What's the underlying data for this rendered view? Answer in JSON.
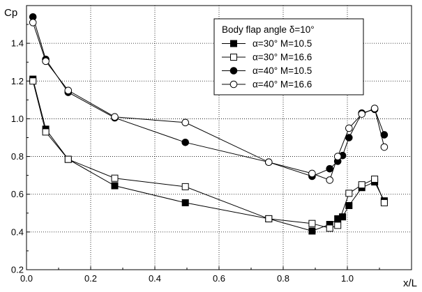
{
  "chart_data": {
    "type": "line",
    "xlabel": "x/L",
    "ylabel": "Cp",
    "xlim": [
      0.0,
      1.2
    ],
    "ylim": [
      0.2,
      1.6
    ],
    "xticks": [
      0.0,
      0.2,
      0.4,
      0.6,
      0.8,
      1.0
    ],
    "xtick_labels": [
      "0.0",
      "0.2",
      "0.4",
      "0.6",
      "0.8",
      "1.0"
    ],
    "yticks": [
      0.2,
      0.4,
      0.6,
      0.8,
      1.0,
      1.2,
      1.4
    ],
    "ytick_labels": [
      "0.2",
      "0.4",
      "0.6",
      "0.8",
      "1.0",
      "1.2",
      "1.4"
    ],
    "grid": true,
    "legend": {
      "title": "Body flap angle δ=10°",
      "placement": "top-right"
    },
    "series": [
      {
        "name": "α=30°  M=10.5",
        "marker": "square-filled",
        "x": [
          0.02,
          0.06,
          0.13,
          0.275,
          0.495,
          0.755,
          0.89,
          0.945,
          0.97,
          0.985,
          1.005,
          1.045,
          1.085,
          1.115
        ],
        "y": [
          1.21,
          0.945,
          0.785,
          0.645,
          0.555,
          0.47,
          0.405,
          0.44,
          0.47,
          0.48,
          0.54,
          0.635,
          0.665,
          0.565
        ]
      },
      {
        "name": "α=30°  M=16.6",
        "marker": "square-open",
        "x": [
          0.02,
          0.06,
          0.13,
          0.275,
          0.495,
          0.755,
          0.89,
          0.945,
          0.97,
          1.005,
          1.045,
          1.085,
          1.115
        ],
        "y": [
          1.2,
          0.93,
          0.785,
          0.685,
          0.64,
          0.47,
          0.445,
          0.42,
          0.435,
          0.605,
          0.65,
          0.68,
          0.555
        ]
      },
      {
        "name": "α=40°  M=10.5",
        "marker": "circle-filled",
        "x": [
          0.02,
          0.06,
          0.13,
          0.275,
          0.495,
          0.755,
          0.89,
          0.945,
          0.97,
          0.985,
          1.005,
          1.045,
          1.085,
          1.115
        ],
        "y": [
          1.54,
          1.315,
          1.14,
          1.005,
          0.875,
          0.77,
          0.695,
          0.735,
          0.775,
          0.805,
          0.9,
          1.03,
          1.05,
          0.915
        ]
      },
      {
        "name": "α=40°  M=16.6",
        "marker": "circle-open",
        "x": [
          0.02,
          0.06,
          0.13,
          0.275,
          0.495,
          0.755,
          0.89,
          0.945,
          0.97,
          1.005,
          1.045,
          1.085,
          1.115
        ],
        "y": [
          1.51,
          1.305,
          1.15,
          1.01,
          0.98,
          0.77,
          0.71,
          0.675,
          0.8,
          0.95,
          1.025,
          1.055,
          0.85
        ]
      }
    ]
  }
}
